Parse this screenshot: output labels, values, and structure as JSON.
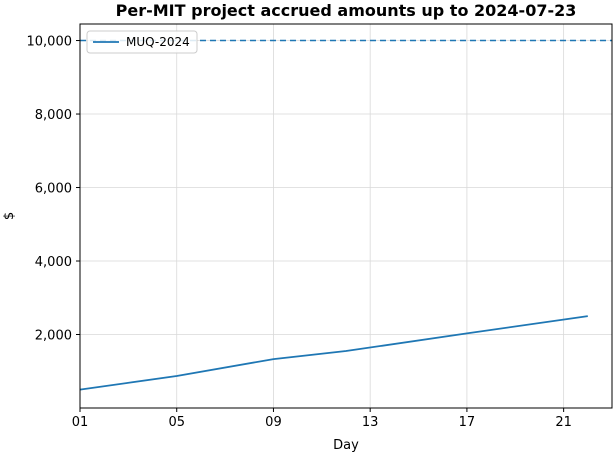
{
  "chart_data": {
    "type": "line",
    "title": "Per-MIT project accrued amounts up to 2024-07-23",
    "xlabel": "Day",
    "ylabel": "$",
    "x_ticks": [
      "01",
      "05",
      "09",
      "13",
      "17",
      "21"
    ],
    "y_ticks": [
      "2,000",
      "4,000",
      "6,000",
      "8,000",
      "10,000"
    ],
    "xlim": [
      1,
      23
    ],
    "ylim": [
      0,
      10450
    ],
    "grid": true,
    "legend_position": "top-left",
    "colors": {
      "series": "#1f77b4",
      "grid": "#d9d9d9"
    },
    "series": [
      {
        "name": "MUQ-2024",
        "x": [
          1,
          5,
          9,
          12,
          17,
          22
        ],
        "y": [
          500,
          870,
          1330,
          1550,
          2030,
          2500
        ]
      }
    ],
    "reference_line": {
      "y": 10000,
      "style": "dashed"
    }
  }
}
